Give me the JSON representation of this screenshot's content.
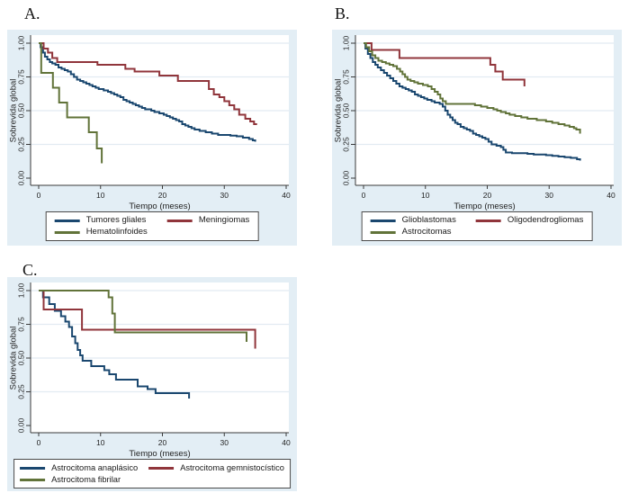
{
  "figure": {
    "description": "Kaplan-Meier overall survival curves, three panels",
    "background": "#ffffff"
  },
  "palette": {
    "navy": "#1a476f",
    "maroon": "#90353b",
    "olive": "#617339",
    "panel_bg": "#e3eef5",
    "grid": "#e2ebf2",
    "axis": "#3a3a3a",
    "text": "#1f1f1f",
    "plot_bg": "#ffffff",
    "legend_border": "#4a4a4a"
  },
  "chart_data": [
    {
      "panel_label": "A.",
      "type": "line",
      "subtype": "kaplan-meier-step",
      "xlabel": "Tiempo (meses)",
      "ylabel": "Sobrevida global",
      "xlim": [
        0,
        40
      ],
      "ylim": [
        0,
        1
      ],
      "xticks": [
        0,
        10,
        20,
        30,
        40
      ],
      "xtick_labels": [
        "0",
        "10",
        "20",
        "30",
        "40"
      ],
      "yticks": [
        0,
        0.25,
        0.5,
        0.75,
        1
      ],
      "ytick_labels": [
        "0.00",
        "0.25",
        "0.50",
        "0.75",
        "1.00"
      ],
      "grid": true,
      "legend_position": "bottom",
      "series": [
        {
          "name": "Tumores gliales",
          "color_key": "navy",
          "points": [
            [
              0,
              1
            ],
            [
              0.3,
              0.97
            ],
            [
              0.7,
              0.93
            ],
            [
              1,
              0.9
            ],
            [
              1.4,
              0.88
            ],
            [
              1.8,
              0.86
            ],
            [
              2.2,
              0.85
            ],
            [
              2.7,
              0.84
            ],
            [
              3.2,
              0.82
            ],
            [
              3.7,
              0.81
            ],
            [
              4.2,
              0.8
            ],
            [
              4.7,
              0.79
            ],
            [
              5.2,
              0.77
            ],
            [
              5.7,
              0.75
            ],
            [
              6.2,
              0.73
            ],
            [
              6.7,
              0.72
            ],
            [
              7.2,
              0.71
            ],
            [
              7.7,
              0.7
            ],
            [
              8.2,
              0.69
            ],
            [
              8.7,
              0.68
            ],
            [
              9.2,
              0.67
            ],
            [
              9.7,
              0.66
            ],
            [
              10.5,
              0.65
            ],
            [
              11.2,
              0.64
            ],
            [
              11.7,
              0.63
            ],
            [
              12.2,
              0.62
            ],
            [
              12.7,
              0.61
            ],
            [
              13.2,
              0.6
            ],
            [
              13.7,
              0.58
            ],
            [
              14.2,
              0.57
            ],
            [
              14.7,
              0.56
            ],
            [
              15.2,
              0.55
            ],
            [
              15.7,
              0.54
            ],
            [
              16.2,
              0.53
            ],
            [
              16.7,
              0.52
            ],
            [
              17.2,
              0.51
            ],
            [
              18.2,
              0.5
            ],
            [
              18.7,
              0.49
            ],
            [
              19.5,
              0.48
            ],
            [
              20.2,
              0.47
            ],
            [
              20.7,
              0.46
            ],
            [
              21.2,
              0.45
            ],
            [
              21.7,
              0.44
            ],
            [
              22.2,
              0.43
            ],
            [
              22.7,
              0.42
            ],
            [
              23.2,
              0.4
            ],
            [
              23.7,
              0.39
            ],
            [
              24.2,
              0.38
            ],
            [
              24.7,
              0.37
            ],
            [
              25.2,
              0.36
            ],
            [
              26,
              0.35
            ],
            [
              27,
              0.34
            ],
            [
              28,
              0.33
            ],
            [
              29,
              0.32
            ],
            [
              31,
              0.315
            ],
            [
              32,
              0.31
            ],
            [
              33,
              0.3
            ],
            [
              34,
              0.29
            ],
            [
              34.6,
              0.28
            ],
            [
              35,
              0.27
            ]
          ]
        },
        {
          "name": "Meningiomas",
          "color_key": "maroon",
          "points": [
            [
              0,
              1
            ],
            [
              0.8,
              0.96
            ],
            [
              1.5,
              0.93
            ],
            [
              2.2,
              0.89
            ],
            [
              3,
              0.86
            ],
            [
              9.5,
              0.84
            ],
            [
              14,
              0.81
            ],
            [
              15.5,
              0.79
            ],
            [
              19.5,
              0.76
            ],
            [
              22.5,
              0.72
            ],
            [
              27.5,
              0.66
            ],
            [
              28.3,
              0.62
            ],
            [
              29.2,
              0.6
            ],
            [
              30,
              0.57
            ],
            [
              30.8,
              0.54
            ],
            [
              31.6,
              0.51
            ],
            [
              32.4,
              0.47
            ],
            [
              33.4,
              0.44
            ],
            [
              34.2,
              0.42
            ],
            [
              34.8,
              0.4
            ],
            [
              35.3,
              0.4
            ]
          ]
        },
        {
          "name": "Hematolinfoides",
          "color_key": "olive",
          "points": [
            [
              0,
              1
            ],
            [
              0.4,
              0.78
            ],
            [
              2.3,
              0.67
            ],
            [
              3.3,
              0.56
            ],
            [
              4.6,
              0.45
            ],
            [
              8.1,
              0.34
            ],
            [
              9.4,
              0.22
            ],
            [
              10.2,
              0.11
            ]
          ]
        }
      ]
    },
    {
      "panel_label": "B.",
      "type": "line",
      "subtype": "kaplan-meier-step",
      "xlabel": "Tiempo (meses)",
      "ylabel": "Sobrevida global",
      "xlim": [
        0,
        40
      ],
      "ylim": [
        0,
        1
      ],
      "xticks": [
        0,
        10,
        20,
        30,
        40
      ],
      "xtick_labels": [
        "0",
        "10",
        "20",
        "30",
        "40"
      ],
      "yticks": [
        0,
        0.25,
        0.5,
        0.75,
        1
      ],
      "ytick_labels": [
        "0.00",
        "0.25",
        "0.50",
        "0.75",
        "1.00"
      ],
      "grid": true,
      "legend_position": "bottom",
      "series": [
        {
          "name": "Glioblastomas",
          "color_key": "navy",
          "points": [
            [
              0,
              1
            ],
            [
              0.3,
              0.96
            ],
            [
              0.7,
              0.92
            ],
            [
              1.1,
              0.89
            ],
            [
              1.5,
              0.86
            ],
            [
              1.9,
              0.84
            ],
            [
              2.3,
              0.82
            ],
            [
              2.8,
              0.8
            ],
            [
              3.3,
              0.78
            ],
            [
              3.8,
              0.76
            ],
            [
              4.3,
              0.74
            ],
            [
              4.8,
              0.72
            ],
            [
              5.3,
              0.7
            ],
            [
              5.8,
              0.68
            ],
            [
              6.3,
              0.67
            ],
            [
              6.8,
              0.66
            ],
            [
              7.3,
              0.65
            ],
            [
              7.8,
              0.64
            ],
            [
              8.3,
              0.62
            ],
            [
              8.8,
              0.61
            ],
            [
              9.3,
              0.6
            ],
            [
              9.8,
              0.59
            ],
            [
              10.3,
              0.58
            ],
            [
              11,
              0.57
            ],
            [
              11.5,
              0.56
            ],
            [
              12.3,
              0.55
            ],
            [
              12.8,
              0.53
            ],
            [
              13.2,
              0.5
            ],
            [
              13.6,
              0.47
            ],
            [
              14,
              0.45
            ],
            [
              14.4,
              0.43
            ],
            [
              14.8,
              0.41
            ],
            [
              15.2,
              0.4
            ],
            [
              15.7,
              0.38
            ],
            [
              16.2,
              0.37
            ],
            [
              16.7,
              0.36
            ],
            [
              17.2,
              0.35
            ],
            [
              17.7,
              0.33
            ],
            [
              18.2,
              0.32
            ],
            [
              18.7,
              0.31
            ],
            [
              19.2,
              0.3
            ],
            [
              19.7,
              0.29
            ],
            [
              20.2,
              0.27
            ],
            [
              20.7,
              0.25
            ],
            [
              21.5,
              0.24
            ],
            [
              22.2,
              0.23
            ],
            [
              22.6,
              0.21
            ],
            [
              23,
              0.19
            ],
            [
              24,
              0.185
            ],
            [
              26.5,
              0.18
            ],
            [
              27.5,
              0.175
            ],
            [
              29.5,
              0.17
            ],
            [
              30.5,
              0.165
            ],
            [
              31.5,
              0.16
            ],
            [
              32.5,
              0.155
            ],
            [
              33.5,
              0.15
            ],
            [
              34.5,
              0.14
            ],
            [
              35,
              0.13
            ]
          ]
        },
        {
          "name": "Oligodendrogliomas",
          "color_key": "maroon",
          "points": [
            [
              0,
              1
            ],
            [
              1.3,
              0.95
            ],
            [
              5.8,
              0.89
            ],
            [
              20.5,
              0.84
            ],
            [
              21.3,
              0.79
            ],
            [
              22.5,
              0.73
            ],
            [
              26,
              0.68
            ]
          ]
        },
        {
          "name": "Astrocitomas",
          "color_key": "olive",
          "points": [
            [
              0,
              1
            ],
            [
              0.4,
              0.97
            ],
            [
              0.9,
              0.94
            ],
            [
              1.4,
              0.91
            ],
            [
              1.9,
              0.89
            ],
            [
              2.4,
              0.87
            ],
            [
              3,
              0.86
            ],
            [
              3.6,
              0.85
            ],
            [
              4.2,
              0.84
            ],
            [
              4.8,
              0.83
            ],
            [
              5.4,
              0.81
            ],
            [
              5.9,
              0.79
            ],
            [
              6.3,
              0.77
            ],
            [
              6.7,
              0.75
            ],
            [
              7.1,
              0.73
            ],
            [
              7.6,
              0.72
            ],
            [
              8.2,
              0.71
            ],
            [
              8.8,
              0.7
            ],
            [
              9.6,
              0.69
            ],
            [
              10.4,
              0.68
            ],
            [
              11,
              0.66
            ],
            [
              11.5,
              0.64
            ],
            [
              12,
              0.62
            ],
            [
              12.4,
              0.59
            ],
            [
              12.8,
              0.57
            ],
            [
              13.3,
              0.55
            ],
            [
              18,
              0.54
            ],
            [
              19,
              0.53
            ],
            [
              20,
              0.52
            ],
            [
              21,
              0.51
            ],
            [
              21.6,
              0.5
            ],
            [
              22.2,
              0.49
            ],
            [
              23,
              0.48
            ],
            [
              23.6,
              0.47
            ],
            [
              24.5,
              0.46
            ],
            [
              25.5,
              0.45
            ],
            [
              26.5,
              0.44
            ],
            [
              28,
              0.43
            ],
            [
              29.5,
              0.42
            ],
            [
              30.5,
              0.41
            ],
            [
              31.5,
              0.4
            ],
            [
              32.5,
              0.39
            ],
            [
              33.3,
              0.38
            ],
            [
              34,
              0.37
            ],
            [
              34.4,
              0.36
            ],
            [
              35,
              0.33
            ]
          ]
        }
      ]
    },
    {
      "panel_label": "C.",
      "type": "line",
      "subtype": "kaplan-meier-step",
      "xlabel": "Tiempo (meses)",
      "ylabel": "Sobrevida global",
      "xlim": [
        0,
        40
      ],
      "ylim": [
        0,
        1
      ],
      "xticks": [
        0,
        10,
        20,
        30,
        40
      ],
      "xtick_labels": [
        "0",
        "10",
        "20",
        "30",
        "40"
      ],
      "yticks": [
        0,
        0.25,
        0.5,
        0.75,
        1
      ],
      "ytick_labels": [
        "0.00",
        "0.25",
        "0.50",
        "0.75",
        "1.00"
      ],
      "grid": true,
      "legend_position": "bottom",
      "series": [
        {
          "name": "Astrocitoma anaplásico",
          "color_key": "navy",
          "points": [
            [
              0,
              1
            ],
            [
              0.7,
              0.95
            ],
            [
              1.7,
              0.9
            ],
            [
              2.6,
              0.85
            ],
            [
              3.6,
              0.81
            ],
            [
              4.3,
              0.77
            ],
            [
              4.9,
              0.73
            ],
            [
              5.4,
              0.66
            ],
            [
              5.9,
              0.61
            ],
            [
              6.3,
              0.56
            ],
            [
              6.7,
              0.52
            ],
            [
              7.1,
              0.48
            ],
            [
              8.5,
              0.44
            ],
            [
              10.6,
              0.41
            ],
            [
              11.4,
              0.38
            ],
            [
              12.5,
              0.34
            ],
            [
              16,
              0.29
            ],
            [
              17.6,
              0.27
            ],
            [
              18.9,
              0.24
            ],
            [
              24.3,
              0.2
            ]
          ]
        },
        {
          "name": "Astrocitoma gemnistocístico",
          "color_key": "maroon",
          "points": [
            [
              0,
              1
            ],
            [
              0.8,
              0.86
            ],
            [
              7,
              0.71
            ],
            [
              35,
              0.57
            ]
          ]
        },
        {
          "name": "Astrocitoma fibrilar",
          "color_key": "olive",
          "points": [
            [
              0,
              1
            ],
            [
              11.3,
              0.95
            ],
            [
              11.9,
              0.83
            ],
            [
              12.3,
              0.69
            ],
            [
              33.6,
              0.62
            ]
          ]
        }
      ]
    }
  ]
}
